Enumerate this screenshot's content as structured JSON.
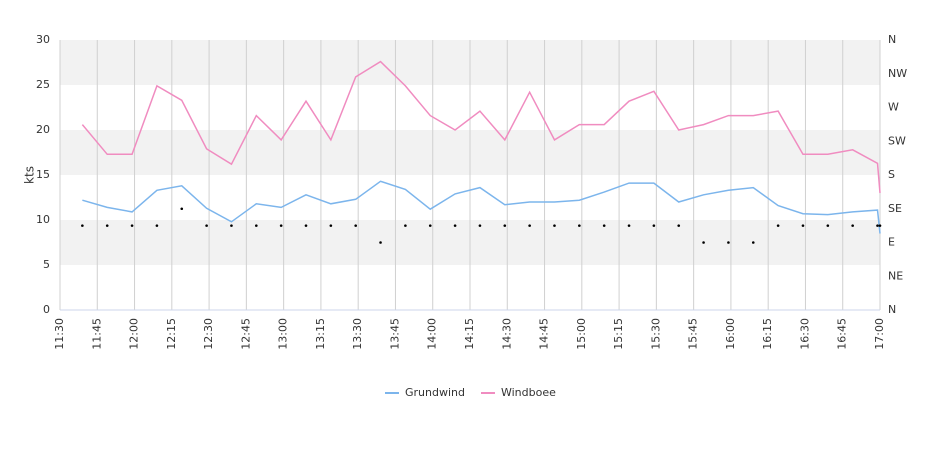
{
  "chart_data": {
    "type": "line",
    "ylabel": "kts",
    "x": [
      "11:39",
      "11:49",
      "11:59",
      "12:09",
      "12:19",
      "12:29",
      "12:39",
      "12:49",
      "12:59",
      "13:09",
      "13:19",
      "13:29",
      "13:39",
      "13:49",
      "13:59",
      "14:09",
      "14:19",
      "14:29",
      "14:39",
      "14:49",
      "14:59",
      "15:09",
      "15:19",
      "15:29",
      "15:39",
      "15:49",
      "15:59",
      "16:09",
      "16:19",
      "16:29",
      "16:39",
      "16:49",
      "16:59",
      "17:00"
    ],
    "xlim": [
      "11:30",
      "17:00"
    ],
    "xticks": [
      "11:30",
      "11:45",
      "12:00",
      "12:15",
      "12:30",
      "12:45",
      "13:00",
      "13:15",
      "13:30",
      "13:45",
      "14:00",
      "14:15",
      "14:30",
      "14:45",
      "15:00",
      "15:15",
      "15:30",
      "15:45",
      "16:00",
      "16:15",
      "16:30",
      "16:45",
      "17:00"
    ],
    "ylim": [
      0,
      30
    ],
    "yticks": [
      0,
      5,
      10,
      15,
      20,
      25,
      30
    ],
    "y2lim": [
      0,
      360
    ],
    "y2ticks": [
      {
        "value": 0,
        "label": "N"
      },
      {
        "value": 45,
        "label": "NE"
      },
      {
        "value": 90,
        "label": "E"
      },
      {
        "value": 135,
        "label": "SE"
      },
      {
        "value": 180,
        "label": "S"
      },
      {
        "value": 225,
        "label": "SW"
      },
      {
        "value": 270,
        "label": "W"
      },
      {
        "value": 315,
        "label": "NW"
      },
      {
        "value": 360,
        "label": "N"
      }
    ],
    "grid": true,
    "legend": "bottom",
    "series": [
      {
        "name": "Grundwind",
        "color": "#7cb5ec",
        "values": [
          12.2,
          11.4,
          10.9,
          13.3,
          13.8,
          11.3,
          9.8,
          11.8,
          11.4,
          12.8,
          11.8,
          12.3,
          14.3,
          13.4,
          11.2,
          12.9,
          13.6,
          11.7,
          12.0,
          12.0,
          12.2,
          13.1,
          14.1,
          14.1,
          12.0,
          12.8,
          13.3,
          13.6,
          11.6,
          10.7,
          10.6,
          10.9,
          11.1,
          8.5
        ]
      },
      {
        "name": "Windboee",
        "color": "#f08cc0",
        "values": [
          20.6,
          17.3,
          17.3,
          24.9,
          23.3,
          17.9,
          16.2,
          21.6,
          18.9,
          23.2,
          18.9,
          25.9,
          27.6,
          24.9,
          21.6,
          20.0,
          22.1,
          18.9,
          24.2,
          18.9,
          20.6,
          20.6,
          23.2,
          24.3,
          20.0,
          20.6,
          21.6,
          21.6,
          22.1,
          17.3,
          17.3,
          17.8,
          16.3,
          13.0
        ]
      },
      {
        "color": "#000000",
        "axis": "y2",
        "marker": "dot",
        "values": [
          112.5,
          112.5,
          112.5,
          112.5,
          135,
          112.5,
          112.5,
          112.5,
          112.5,
          112.5,
          112.5,
          112.5,
          90,
          112.5,
          112.5,
          112.5,
          112.5,
          112.5,
          112.5,
          112.5,
          112.5,
          112.5,
          112.5,
          112.5,
          112.5,
          90,
          90,
          90,
          112.5,
          112.5,
          112.5,
          112.5,
          112.5,
          112.5
        ]
      }
    ]
  }
}
